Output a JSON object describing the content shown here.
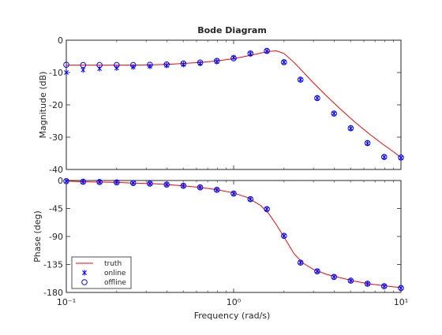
{
  "chart_data": {
    "type": "line",
    "title": "Bode Diagram",
    "xlabel": "Frequency  (rad/s)",
    "xscale": "log",
    "xlim": [
      0.1,
      10
    ],
    "x_ticks": [
      0.1,
      1,
      10
    ],
    "x_tick_labels": [
      "10⁻¹",
      "10⁰",
      "10¹"
    ],
    "legend": {
      "location": "bottom-left",
      "entries": [
        {
          "label": "truth",
          "marker": "line",
          "color": "#ff0000"
        },
        {
          "label": "online",
          "marker": "asterisk",
          "color": "#0000ff"
        },
        {
          "label": "offline",
          "marker": "circle",
          "color": "#0000ff"
        }
      ]
    },
    "colors": {
      "truth": "#ff0000",
      "estimates": "#0000ff",
      "axes": "#262626"
    },
    "panels": [
      {
        "ylabel": "Magnitude (dB)",
        "ylim": [
          -40,
          0
        ],
        "y_ticks": [
          -40,
          -30,
          -20,
          -10,
          0
        ],
        "y_tick_labels": [
          "-40",
          "-30",
          "-20",
          "-10",
          "0"
        ],
        "truth": {
          "x": [
            0.1,
            0.13,
            0.16,
            0.2,
            0.25,
            0.32,
            0.4,
            0.5,
            0.63,
            0.8,
            1.0,
            1.2,
            1.45,
            1.62,
            1.8,
            2.0,
            2.3,
            2.6,
            3.0,
            3.6,
            4.3,
            5.3,
            6.4,
            7.8,
            9.0,
            10.0
          ],
          "y": [
            -7.7,
            -7.7,
            -7.7,
            -7.7,
            -7.7,
            -7.6,
            -7.5,
            -7.2,
            -6.9,
            -6.4,
            -5.7,
            -4.9,
            -4.0,
            -3.5,
            -3.3,
            -4.1,
            -6.9,
            -9.8,
            -13.2,
            -17.3,
            -21.1,
            -25.3,
            -28.8,
            -32.2,
            -34.5,
            -36.3
          ]
        },
        "online": {
          "x": [
            0.1,
            0.126,
            0.158,
            0.2,
            0.251,
            0.316,
            0.398,
            0.501,
            0.631,
            0.794,
            1.0,
            1.26,
            1.58,
            2.0,
            2.51,
            3.16,
            3.98,
            5.01,
            6.31,
            7.94,
            10.0
          ],
          "y": [
            -10.0,
            -9.2,
            -8.8,
            -8.6,
            -8.3,
            -8.1,
            -7.8,
            -7.5,
            -7.2,
            -6.6,
            -5.4,
            -4.2,
            -3.4,
            -6.8,
            -12.2,
            -17.9,
            -22.7,
            -27.3,
            -31.9,
            -36.2,
            -36.4
          ]
        },
        "offline": {
          "x": [
            0.1,
            0.126,
            0.158,
            0.2,
            0.251,
            0.316,
            0.398,
            0.501,
            0.631,
            0.794,
            1.0,
            1.26,
            1.58,
            2.0,
            2.51,
            3.16,
            3.98,
            5.01,
            6.31,
            7.94,
            10.0
          ],
          "y": [
            -7.6,
            -7.7,
            -7.7,
            -7.7,
            -7.7,
            -7.6,
            -7.5,
            -7.2,
            -6.9,
            -6.4,
            -5.6,
            -4.1,
            -3.3,
            -6.8,
            -12.2,
            -17.9,
            -22.7,
            -27.2,
            -31.8,
            -36.1,
            -36.3
          ]
        }
      },
      {
        "ylabel": "Phase (deg)",
        "ylim": [
          -180,
          0
        ],
        "y_ticks": [
          -180,
          -135,
          -90,
          -45,
          0
        ],
        "y_tick_labels": [
          "-180",
          "-135",
          "-90",
          "-45",
          "0"
        ],
        "truth": {
          "x": [
            0.1,
            0.13,
            0.16,
            0.2,
            0.25,
            0.32,
            0.4,
            0.5,
            0.63,
            0.8,
            1.0,
            1.2,
            1.45,
            1.62,
            1.8,
            2.0,
            2.3,
            2.6,
            3.0,
            3.6,
            4.3,
            5.3,
            6.4,
            7.8,
            9.0,
            10.0
          ],
          "y": [
            -1,
            -2,
            -2.5,
            -3,
            -4,
            -5,
            -6.5,
            -8.5,
            -11,
            -15,
            -20,
            -27,
            -40,
            -53,
            -71,
            -91,
            -118,
            -133,
            -143,
            -151,
            -156,
            -162,
            -166,
            -169,
            -171,
            -172
          ]
        },
        "online": {
          "x": [
            0.1,
            0.126,
            0.158,
            0.2,
            0.251,
            0.316,
            0.398,
            0.501,
            0.631,
            0.794,
            1.0,
            1.26,
            1.58,
            2.0,
            2.51,
            3.16,
            3.98,
            5.01,
            6.31,
            7.94,
            10.0
          ],
          "y": [
            -1,
            -2,
            -2.5,
            -3,
            -4,
            -5,
            -6.5,
            -8.5,
            -11,
            -15,
            -21,
            -30,
            -46,
            -89,
            -132,
            -146,
            -155,
            -161,
            -166,
            -170,
            -173
          ]
        },
        "offline": {
          "x": [
            0.1,
            0.126,
            0.158,
            0.2,
            0.251,
            0.316,
            0.398,
            0.501,
            0.631,
            0.794,
            1.0,
            1.26,
            1.58,
            2.0,
            2.51,
            3.16,
            3.98,
            5.01,
            6.31,
            7.94,
            10.0
          ],
          "y": [
            -1,
            -2,
            -2.5,
            -3,
            -4,
            -5,
            -6.5,
            -8.5,
            -11,
            -15,
            -21,
            -30,
            -46,
            -89,
            -132,
            -146,
            -155,
            -161,
            -166,
            -170,
            -173
          ]
        }
      }
    ]
  }
}
